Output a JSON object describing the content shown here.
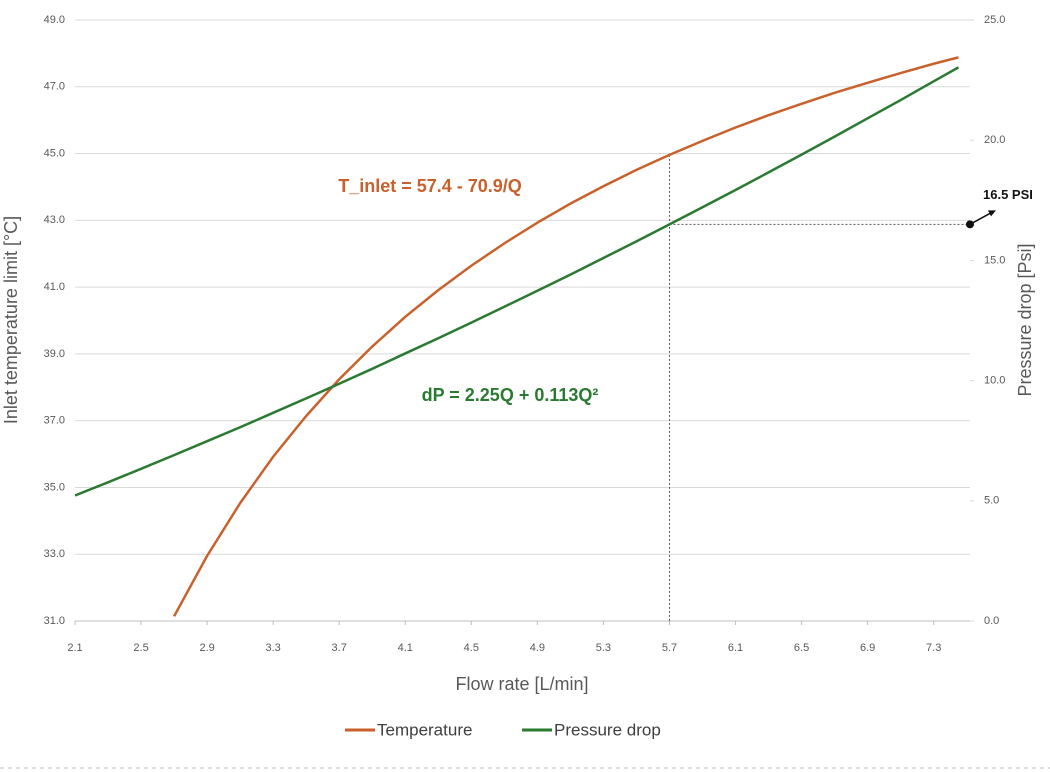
{
  "chart_data": {
    "type": "line",
    "x_label": "Flow rate [L/min]",
    "y_label": "Inlet temperature limit [°C]",
    "y2_label": "Pressure drop [Psi]",
    "x": [
      2.1,
      2.3,
      2.5,
      2.7,
      2.9,
      3.1,
      3.3,
      3.5,
      3.7,
      3.9,
      4.1,
      4.3,
      4.5,
      4.7,
      4.9,
      5.1,
      5.3,
      5.5,
      5.7,
      5.9,
      6.1,
      6.3,
      6.5,
      6.7,
      6.9,
      7.1,
      7.3,
      7.45
    ],
    "series": [
      {
        "name": "Temperature",
        "color": "#c8612c",
        "axis": "y",
        "values": [
          null,
          null,
          null,
          31.14,
          32.95,
          34.53,
          35.92,
          37.14,
          38.24,
          39.22,
          40.11,
          40.91,
          41.64,
          42.31,
          42.93,
          43.5,
          44.02,
          44.51,
          44.96,
          45.38,
          45.78,
          46.15,
          46.49,
          46.82,
          47.12,
          47.41,
          47.69,
          47.88
        ]
      },
      {
        "name": "Pressure drop",
        "color": "#2a7a32",
        "axis": "y2",
        "values": [
          5.22,
          5.77,
          6.33,
          6.9,
          7.48,
          8.06,
          8.66,
          9.26,
          9.87,
          10.49,
          11.13,
          11.76,
          12.41,
          13.07,
          13.74,
          14.41,
          15.1,
          15.79,
          16.5,
          17.21,
          17.93,
          18.66,
          19.4,
          20.15,
          20.91,
          21.67,
          22.45,
          23.03
        ]
      }
    ],
    "annotations": [
      "T_inlet = 57.4 - 70.9/Q",
      "dP = 2.25Q + 0.113Q²"
    ],
    "reference": {
      "x": 5.7,
      "y2": 16.5,
      "label": "16.5 PSI"
    },
    "xlim": [
      2.1,
      7.52
    ],
    "xticks": [
      2.1,
      2.5,
      2.9,
      3.3,
      3.7,
      4.1,
      4.5,
      4.9,
      5.3,
      5.7,
      6.1,
      6.5,
      6.9,
      7.3
    ],
    "ylim": [
      31,
      49
    ],
    "yticks": [
      {
        "value": 31,
        "label": "31.0"
      },
      {
        "value": 33,
        "label": "33.0"
      },
      {
        "value": 35,
        "label": "35.0"
      },
      {
        "value": 37,
        "label": "37.0"
      },
      {
        "value": 39,
        "label": "39.0"
      },
      {
        "value": 41,
        "label": "41.0"
      },
      {
        "value": 43,
        "label": "43.0"
      },
      {
        "value": 45,
        "label": "45.0"
      },
      {
        "value": 47,
        "label": "47.0"
      },
      {
        "value": 49,
        "label": "49.0"
      }
    ],
    "y2lim": [
      0,
      25
    ],
    "y2ticks": [
      {
        "value": 0,
        "label": "0.0"
      },
      {
        "value": 5,
        "label": "5.0"
      },
      {
        "value": 10,
        "label": "10.0"
      },
      {
        "value": 15,
        "label": "15.0"
      },
      {
        "value": 20,
        "label": "20.0"
      },
      {
        "value": 25,
        "label": "25.0"
      }
    ],
    "grid": true
  }
}
